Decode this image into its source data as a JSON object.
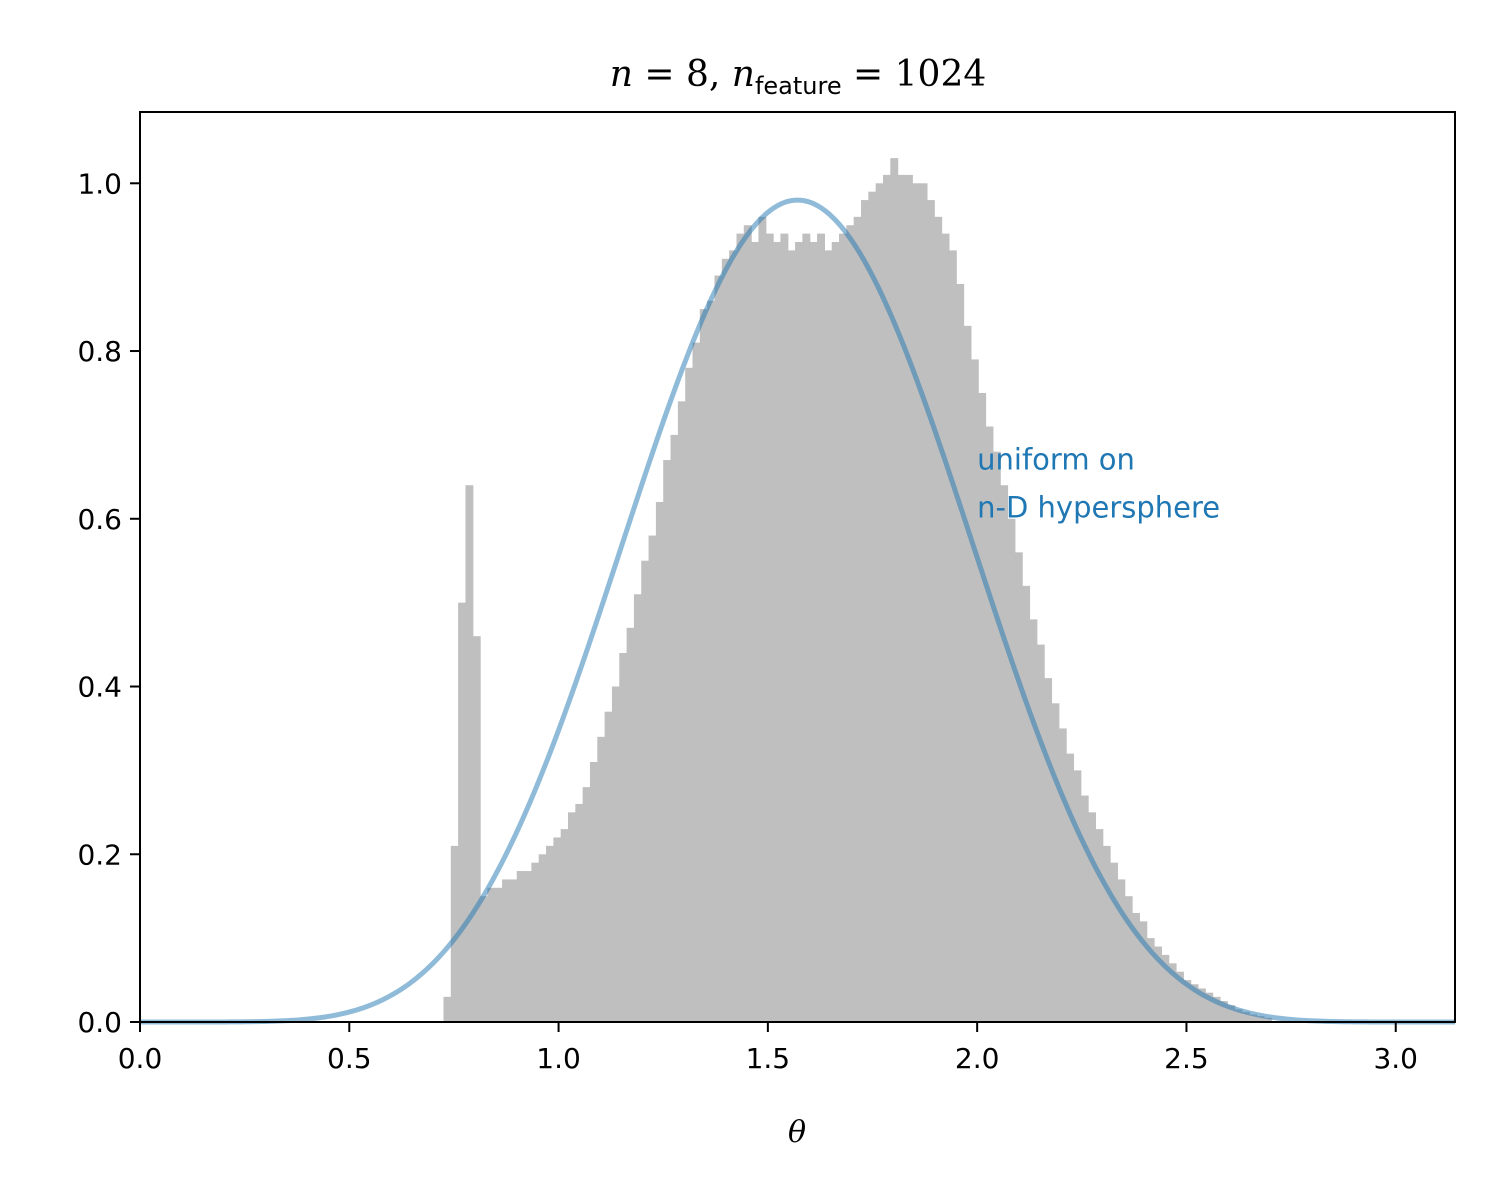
{
  "chart_data": {
    "type": "histogram",
    "title": {
      "n_symbol": "n",
      "n_value": "8",
      "nf_symbol": "n",
      "nf_subscript": "feature",
      "nf_value": "1024"
    },
    "xlabel": "θ",
    "ylabel": "",
    "xlim": [
      0,
      3.14159
    ],
    "ylim": [
      0,
      1.085
    ],
    "xticks": [
      "0.0",
      "0.5",
      "1.0",
      "1.5",
      "2.0",
      "2.5",
      "3.0"
    ],
    "yticks": [
      "0.0",
      "0.2",
      "0.4",
      "0.6",
      "0.8",
      "1.0"
    ],
    "grid": false,
    "histogram": {
      "color": "#bfbfbf",
      "bin_start": 0.725,
      "bin_width": 0.0175,
      "density": [
        0.03,
        0.21,
        0.5,
        0.64,
        0.46,
        0.15,
        0.16,
        0.16,
        0.17,
        0.17,
        0.18,
        0.18,
        0.19,
        0.2,
        0.21,
        0.22,
        0.23,
        0.25,
        0.26,
        0.28,
        0.31,
        0.34,
        0.37,
        0.4,
        0.44,
        0.47,
        0.51,
        0.55,
        0.58,
        0.62,
        0.67,
        0.7,
        0.74,
        0.78,
        0.81,
        0.85,
        0.86,
        0.89,
        0.91,
        0.92,
        0.94,
        0.95,
        0.93,
        0.96,
        0.94,
        0.93,
        0.94,
        0.92,
        0.93,
        0.94,
        0.93,
        0.94,
        0.92,
        0.93,
        0.94,
        0.95,
        0.96,
        0.98,
        0.99,
        1.0,
        1.01,
        1.03,
        1.01,
        1.01,
        1.0,
        1.0,
        0.98,
        0.96,
        0.94,
        0.92,
        0.88,
        0.83,
        0.79,
        0.75,
        0.71,
        0.68,
        0.64,
        0.6,
        0.56,
        0.52,
        0.48,
        0.45,
        0.41,
        0.38,
        0.35,
        0.32,
        0.3,
        0.27,
        0.25,
        0.23,
        0.21,
        0.19,
        0.17,
        0.15,
        0.13,
        0.12,
        0.1,
        0.09,
        0.08,
        0.07,
        0.06,
        0.05,
        0.045,
        0.04,
        0.035,
        0.03,
        0.025,
        0.02,
        0.015,
        0.012,
        0.009,
        0.007,
        0.005
      ]
    },
    "series": [
      {
        "name": "uniform on n-D hypersphere",
        "kind": "line",
        "color": "#1f77b4",
        "alpha": 0.5,
        "formula": "C·sin^6(θ), n=8",
        "peak": 0.98
      }
    ],
    "annotation": {
      "lines": [
        "uniform on",
        "n-D hypersphere"
      ],
      "x": 2.0,
      "y": 0.63,
      "color": "#1f77b4"
    }
  }
}
